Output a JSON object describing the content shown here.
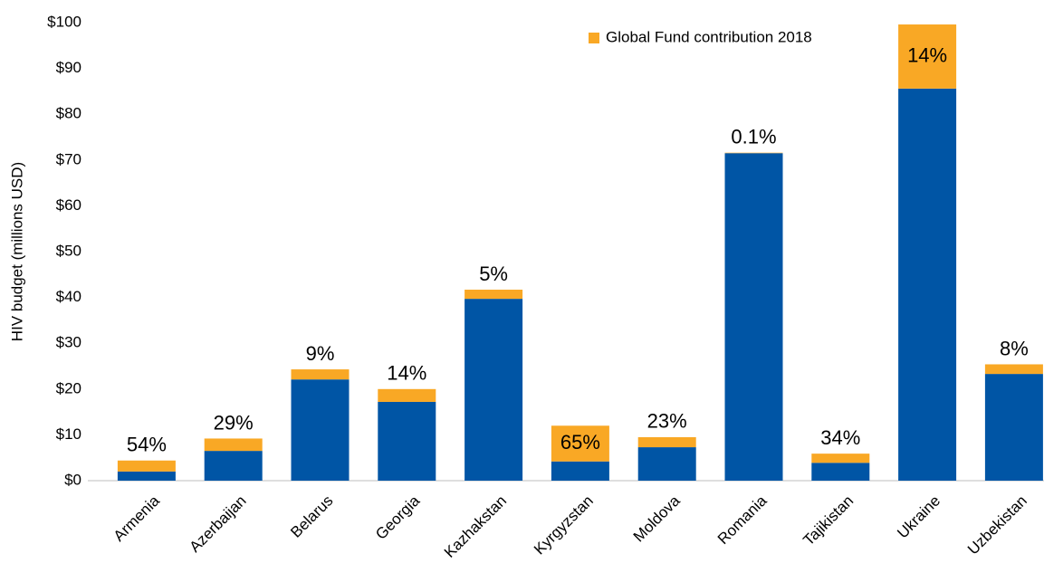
{
  "chart_data": {
    "type": "stacked_bar",
    "y_axis_label": "HIV budget (millions USD)",
    "categories": [
      "Armenia",
      "Azerbaijan",
      "Belarus",
      "Georgia",
      "Kazhakstan",
      "Kyrgyzstan",
      "Moldova",
      "Romania",
      "Tajikistan",
      "Ukraine",
      "Uzbekistan"
    ],
    "series": [
      {
        "color": "#0055a5",
        "values": [
          2.0,
          6.5,
          22.1,
          17.2,
          39.7,
          4.2,
          7.3,
          71.5,
          3.9,
          85.6,
          23.3
        ]
      },
      {
        "name": "Global Fund contribution 2018",
        "color": "#f9a825",
        "values": [
          2.4,
          2.7,
          2.2,
          2.8,
          2.0,
          7.8,
          2.2,
          0.1,
          2.0,
          14.0,
          2.1
        ]
      }
    ],
    "share_labels": [
      "54%",
      "29%",
      "9%",
      "14%",
      "5%",
      "65%",
      "23%",
      "0.1%",
      "34%",
      "14%",
      "8%"
    ],
    "ylim": [
      0,
      100
    ],
    "yticks": [
      {
        "value": 0,
        "label": "$0"
      },
      {
        "value": 10,
        "label": "$10"
      },
      {
        "value": 20,
        "label": "$20"
      },
      {
        "value": 30,
        "label": "$30"
      },
      {
        "value": 40,
        "label": "$40"
      },
      {
        "value": 50,
        "label": "$50"
      },
      {
        "value": 60,
        "label": "$60"
      },
      {
        "value": 70,
        "label": "$70"
      },
      {
        "value": 80,
        "label": "$80"
      },
      {
        "value": 90,
        "label": "$90"
      },
      {
        "value": 100,
        "label": "$100"
      }
    ],
    "grid": false,
    "legend": "top-right"
  }
}
